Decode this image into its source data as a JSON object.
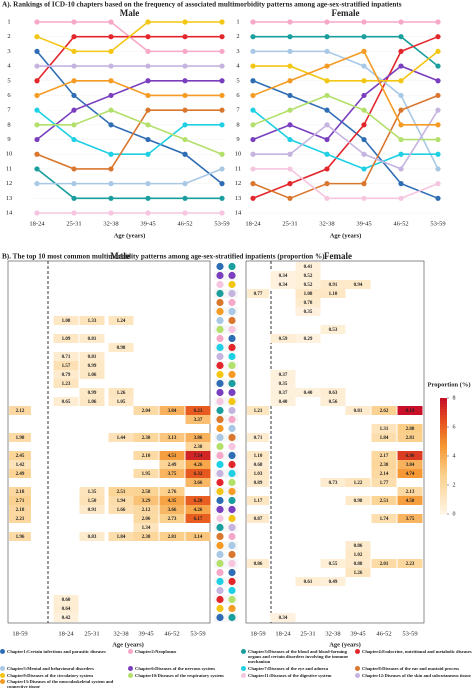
{
  "panel_a_title": "A). Rankings of ICD-10 chapters based on the frequency of associated multimorbidity patterns among age-sex-stratified inpatients",
  "panel_b_title": "B). The top 10 most common multimorbidity patterns among age-sex-stratified inpatients (proportion %)",
  "chart_data": [
    {
      "type": "bump",
      "title": "Male",
      "xlabel": "Age (years)",
      "x": [
        "18-24",
        "25-31",
        "32-38",
        "39-45",
        "46-52",
        "53-59"
      ],
      "ylim": [
        14,
        1
      ],
      "yticks": [
        1,
        2,
        3,
        4,
        5,
        6,
        7,
        8,
        9,
        10,
        11,
        12,
        13,
        14
      ],
      "series": [
        {
          "name": "Chapter1:Certain infectious and parasitic diseases",
          "color": "#2e6db4",
          "values": [
            3,
            6,
            8,
            9,
            10,
            12
          ]
        },
        {
          "name": "Chapter2:Neoplasms",
          "color": "#f7a8c8",
          "values": [
            1,
            1,
            1,
            3,
            3,
            3
          ]
        },
        {
          "name": "Chapter3:Diseases of the blood and blood-forming organs and certain disorders involving the immune mechanism",
          "color": "#1a9e9e",
          "values": [
            11,
            13,
            13,
            13,
            13,
            13
          ]
        },
        {
          "name": "Chapter4:Endocrine, nutritional and metabolic diseases",
          "color": "#e3262b",
          "values": [
            5,
            2,
            2,
            2,
            2,
            2
          ]
        },
        {
          "name": "Chapter5:Mental and behavioural disorders",
          "color": "#a8c8e6",
          "values": [
            12,
            12,
            12,
            12,
            12,
            11
          ]
        },
        {
          "name": "Chapter6:Diseases of the nervous system",
          "color": "#7a3fbf",
          "values": [
            9,
            7,
            6,
            5,
            5,
            5
          ]
        },
        {
          "name": "Chapter7:Diseases of the eye and adnexa",
          "color": "#1fd0e4",
          "values": [
            7,
            9,
            10,
            10,
            8,
            8
          ]
        },
        {
          "name": "Chapter8:Diseases of the ear and mastoid process",
          "color": "#d9772f",
          "values": [
            10,
            11,
            11,
            7,
            7,
            7
          ]
        },
        {
          "name": "Chapter9:Diseases of the circulatory system",
          "color": "#f3c614",
          "values": [
            2,
            3,
            3,
            1,
            1,
            1
          ]
        },
        {
          "name": "Chapter10:Diseases of the respiratory system",
          "color": "#b3e06a",
          "values": [
            8,
            8,
            7,
            8,
            9,
            10
          ]
        },
        {
          "name": "Chapter11:Diseases of the digestive system",
          "color": "#f6c5df",
          "values": [
            14,
            14,
            14,
            14,
            14,
            14
          ]
        },
        {
          "name": "Chapter12:Diseases of the skin and subcutaneous tissue",
          "color": "#c5b3e0",
          "values": [
            4,
            4,
            4,
            4,
            4,
            4
          ]
        },
        {
          "name": "Chapter13:Diseases of the musculoskeletal system and connective tissue",
          "color": "#f59b23",
          "values": [
            6,
            5,
            5,
            6,
            6,
            6
          ]
        }
      ]
    },
    {
      "type": "bump",
      "title": "Female",
      "xlabel": "Age (years)",
      "x": [
        "18-24",
        "25-31",
        "32-38",
        "39-45",
        "46-52",
        "53-59"
      ],
      "ylim": [
        14,
        1
      ],
      "yticks": [
        1,
        2,
        3,
        4,
        5,
        6,
        7,
        8,
        9,
        10,
        11,
        12,
        13,
        14
      ],
      "series": [
        {
          "color": "#2e6db4",
          "values": [
            5,
            6,
            7,
            9,
            12,
            13
          ]
        },
        {
          "color": "#f7a8c8",
          "values": [
            1,
            1,
            1,
            1,
            1,
            1
          ]
        },
        {
          "color": "#1a9e9e",
          "values": [
            2,
            2,
            2,
            2,
            2,
            4
          ]
        },
        {
          "color": "#e3262b",
          "values": [
            13,
            12,
            11,
            8,
            3,
            2
          ]
        },
        {
          "color": "#a8c8e6",
          "values": [
            3,
            3,
            3,
            4,
            6,
            11
          ]
        },
        {
          "color": "#7a3fbf",
          "values": [
            9,
            8,
            9,
            6,
            4,
            5
          ]
        },
        {
          "color": "#1fd0e4",
          "values": [
            7,
            9,
            10,
            11,
            10,
            10
          ]
        },
        {
          "color": "#d9772f",
          "values": [
            12,
            13,
            12,
            12,
            7,
            6
          ]
        },
        {
          "color": "#f3c614",
          "values": [
            4,
            4,
            5,
            5,
            5,
            3
          ]
        },
        {
          "color": "#b3e06a",
          "values": [
            8,
            7,
            6,
            7,
            9,
            9
          ]
        },
        {
          "color": "#f6c5df",
          "values": [
            11,
            11,
            13,
            13,
            13,
            12
          ]
        },
        {
          "color": "#c5b3e0",
          "values": [
            10,
            10,
            8,
            10,
            11,
            7
          ]
        },
        {
          "color": "#f59b23",
          "values": [
            6,
            5,
            4,
            3,
            8,
            8
          ]
        }
      ]
    },
    {
      "type": "heatmap",
      "title": "Male",
      "xlabel": "Age (years)",
      "x": [
        "18-59",
        "18-24",
        "25-31",
        "32-38",
        "39-45",
        "46-52",
        "53-59"
      ],
      "colorbar": {
        "title": "Proportion (%)",
        "lim": [
          0,
          8
        ],
        "ticks": [
          0,
          2,
          4,
          6,
          8
        ]
      },
      "rows": [
        [
          null,
          null,
          null,
          null,
          null,
          null,
          null
        ],
        [
          null,
          null,
          null,
          null,
          null,
          null,
          null
        ],
        [
          null,
          null,
          null,
          null,
          null,
          null,
          null
        ],
        [
          null,
          null,
          null,
          null,
          null,
          null,
          null
        ],
        [
          null,
          null,
          null,
          null,
          null,
          null,
          null
        ],
        [
          null,
          null,
          null,
          null,
          null,
          null,
          null
        ],
        [
          null,
          1.08,
          1.33,
          1.24,
          null,
          null,
          null
        ],
        [
          null,
          null,
          null,
          null,
          null,
          null,
          null
        ],
        [
          null,
          1.09,
          0.81,
          null,
          null,
          null,
          null
        ],
        [
          null,
          null,
          null,
          0.98,
          null,
          null,
          null
        ],
        [
          null,
          0.71,
          0.81,
          null,
          null,
          null,
          null
        ],
        [
          null,
          1.57,
          0.99,
          null,
          null,
          null,
          null
        ],
        [
          null,
          0.79,
          1.06,
          null,
          null,
          null,
          null
        ],
        [
          null,
          1.23,
          null,
          null,
          null,
          null,
          null
        ],
        [
          null,
          null,
          0.99,
          1.26,
          null,
          null,
          null
        ],
        [
          null,
          0.65,
          1.06,
          1.05,
          null,
          null,
          null
        ],
        [
          2.12,
          null,
          null,
          null,
          2.04,
          3.84,
          6.23
        ],
        [
          null,
          null,
          null,
          null,
          null,
          null,
          3.37
        ],
        [
          null,
          null,
          null,
          null,
          null,
          null,
          null
        ],
        [
          1.98,
          null,
          null,
          1.44,
          2.3,
          3.13,
          3.86
        ],
        [
          null,
          null,
          null,
          null,
          null,
          null,
          2.38
        ],
        [
          2.45,
          null,
          null,
          null,
          2.1,
          4.51,
          7.54
        ],
        [
          1.42,
          null,
          null,
          null,
          null,
          2.49,
          4.26
        ],
        [
          2.49,
          null,
          null,
          null,
          1.95,
          3.75,
          6.32
        ],
        [
          null,
          null,
          null,
          null,
          null,
          null,
          3.66
        ],
        [
          2.18,
          null,
          1.35,
          2.51,
          2.58,
          2.76,
          null
        ],
        [
          2.71,
          null,
          1.5,
          1.94,
          3.29,
          4.35,
          6.2
        ],
        [
          2.18,
          null,
          0.91,
          1.66,
          2.12,
          3.66,
          4.26
        ],
        [
          2.21,
          null,
          null,
          null,
          2.06,
          2.73,
          6.17
        ],
        [
          null,
          null,
          null,
          null,
          1.34,
          null,
          null
        ],
        [
          1.96,
          null,
          0.83,
          1.84,
          2.38,
          2.81,
          3.14
        ],
        [
          null,
          null,
          null,
          null,
          null,
          null,
          null
        ],
        [
          null,
          null,
          null,
          null,
          null,
          null,
          null
        ],
        [
          null,
          null,
          null,
          null,
          null,
          null,
          null
        ],
        [
          null,
          null,
          null,
          null,
          null,
          null,
          null
        ],
        [
          null,
          null,
          null,
          null,
          null,
          null,
          null
        ],
        [
          null,
          null,
          null,
          null,
          null,
          null,
          null
        ],
        [
          null,
          0.6,
          null,
          null,
          null,
          null,
          null
        ],
        [
          null,
          0.64,
          null,
          null,
          null,
          null,
          null
        ],
        [
          null,
          0.42,
          null,
          null,
          null,
          null,
          null
        ]
      ]
    },
    {
      "type": "heatmap",
      "title": "Female",
      "xlabel": "Age (years)",
      "x": [
        "18-59",
        "18-24",
        "25-31",
        "32-38",
        "39-45",
        "46-52",
        "53-59"
      ],
      "rows": [
        [
          null,
          null,
          0.41,
          null,
          null,
          null,
          null
        ],
        [
          null,
          0.34,
          0.52,
          null,
          null,
          null,
          null
        ],
        [
          null,
          0.34,
          0.52,
          0.91,
          0.94,
          null,
          null
        ],
        [
          0.77,
          null,
          1.08,
          1.1,
          null,
          null,
          null
        ],
        [
          null,
          null,
          0.78,
          null,
          null,
          null,
          null
        ],
        [
          null,
          null,
          0.35,
          null,
          null,
          null,
          null
        ],
        [
          null,
          null,
          null,
          null,
          null,
          null,
          null
        ],
        [
          null,
          null,
          null,
          0.53,
          null,
          null,
          null
        ],
        [
          null,
          0.59,
          0.29,
          null,
          null,
          null,
          null
        ],
        [
          null,
          null,
          null,
          null,
          null,
          null,
          null
        ],
        [
          null,
          null,
          null,
          null,
          null,
          null,
          null
        ],
        [
          null,
          null,
          null,
          null,
          null,
          null,
          null
        ],
        [
          null,
          0.37,
          null,
          null,
          null,
          null,
          null
        ],
        [
          null,
          0.35,
          null,
          null,
          null,
          null,
          null
        ],
        [
          null,
          0.37,
          0.4,
          0.63,
          null,
          null,
          null
        ],
        [
          null,
          0.4,
          null,
          0.56,
          null,
          null,
          null
        ],
        [
          1.21,
          null,
          null,
          null,
          0.81,
          2.62,
          8.19
        ],
        [
          null,
          null,
          null,
          null,
          null,
          null,
          null
        ],
        [
          null,
          null,
          null,
          null,
          null,
          1.31,
          2.88
        ],
        [
          0.71,
          null,
          null,
          null,
          null,
          1.84,
          2.81
        ],
        [
          null,
          null,
          null,
          null,
          null,
          null,
          null
        ],
        [
          1.1,
          null,
          null,
          null,
          null,
          2.17,
          6.96
        ],
        [
          0.68,
          null,
          null,
          null,
          null,
          2.38,
          3.84
        ],
        [
          1.03,
          null,
          null,
          null,
          null,
          2.14,
          4.74
        ],
        [
          0.89,
          null,
          null,
          0.73,
          1.22,
          1.77,
          null
        ],
        [
          null,
          null,
          null,
          null,
          null,
          null,
          2.13
        ],
        [
          1.17,
          null,
          null,
          null,
          0.98,
          2.51,
          4.5
        ],
        [
          null,
          null,
          null,
          null,
          null,
          null,
          null
        ],
        [
          0.87,
          null,
          null,
          null,
          null,
          1.74,
          3.75
        ],
        [
          null,
          null,
          null,
          null,
          null,
          null,
          null
        ],
        [
          null,
          null,
          null,
          null,
          null,
          null,
          null
        ],
        [
          null,
          null,
          null,
          null,
          0.86,
          null,
          null
        ],
        [
          null,
          null,
          null,
          null,
          1.02,
          null,
          null
        ],
        [
          0.86,
          null,
          null,
          0.55,
          0.88,
          2.01,
          2.23
        ],
        [
          null,
          null,
          null,
          null,
          1.26,
          null,
          null
        ],
        [
          null,
          null,
          0.61,
          0.49,
          null,
          null,
          null
        ],
        [
          null,
          null,
          null,
          null,
          null,
          null,
          null
        ],
        [
          null,
          null,
          null,
          null,
          null,
          null,
          null
        ],
        [
          null,
          null,
          null,
          null,
          null,
          null,
          null
        ],
        [
          null,
          0.34,
          null,
          null,
          null,
          null,
          null
        ]
      ]
    }
  ]
}
